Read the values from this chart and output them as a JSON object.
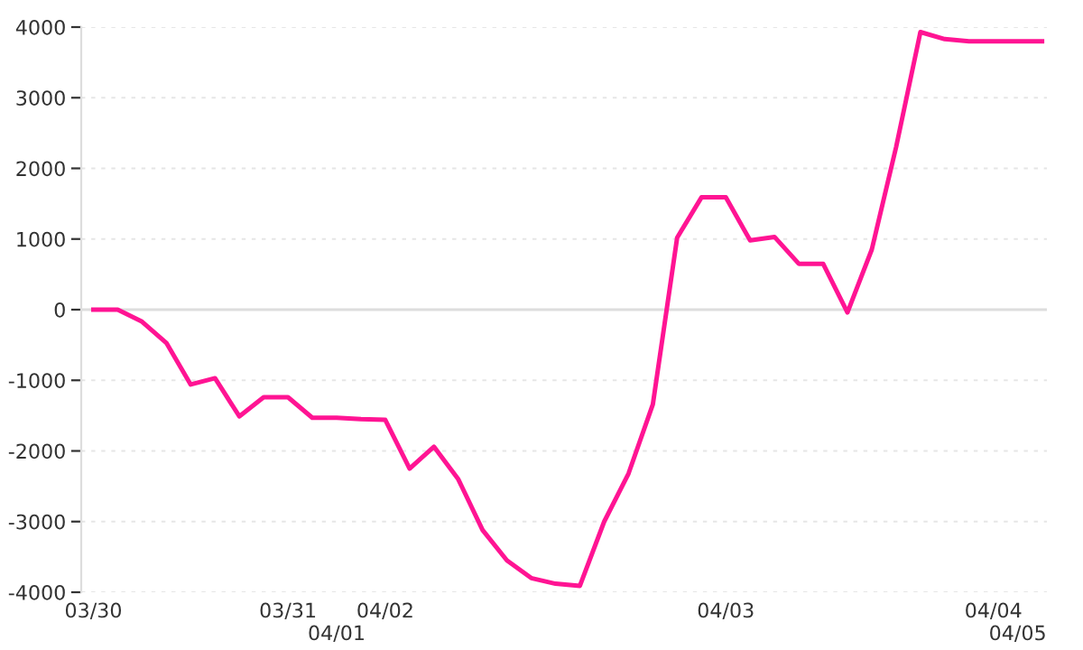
{
  "chart_data": {
    "type": "line",
    "categories": [
      "03/30",
      null,
      null,
      null,
      null,
      null,
      null,
      null,
      "03/31",
      null,
      "04/01",
      null,
      "04/02",
      null,
      null,
      null,
      null,
      null,
      null,
      null,
      null,
      null,
      null,
      null,
      null,
      null,
      "04/03",
      null,
      null,
      null,
      null,
      null,
      null,
      null,
      null,
      null,
      null,
      "04/04",
      "04/05",
      null
    ],
    "series": [
      {
        "color": "#ff1493",
        "values": [
          0,
          0,
          -170,
          -470,
          -1060,
          -970,
          -1510,
          -1240,
          -1240,
          -1530,
          -1530,
          -1550,
          -1560,
          -2250,
          -1940,
          -2400,
          -3120,
          -3550,
          -3800,
          -3880,
          -3910,
          -3000,
          -2320,
          -1340,
          1020,
          1590,
          1590,
          980,
          1030,
          650,
          650,
          -40,
          850,
          2300,
          3930,
          3830,
          3800,
          3800,
          3800,
          3800
        ]
      }
    ],
    "ylim": [
      -4000,
      4000
    ],
    "yticks": [
      -4000,
      -3000,
      -2000,
      -1000,
      0,
      1000,
      2000,
      3000,
      4000
    ],
    "grid": "y",
    "marker": "none",
    "line_style": "solid",
    "ref_lines": [
      {
        "axis": "y",
        "value": 0,
        "color": "#dddddd"
      }
    ]
  }
}
